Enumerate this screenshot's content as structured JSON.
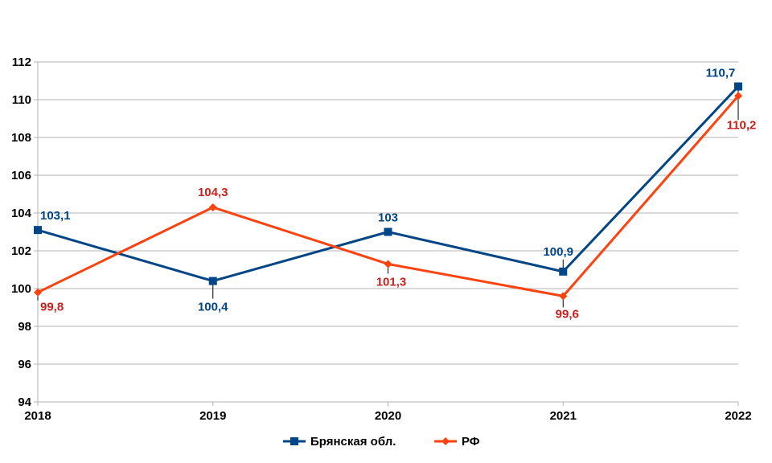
{
  "chart_data": {
    "type": "line",
    "title": "",
    "xlabel": "",
    "ylabel": "",
    "categories": [
      "2018",
      "2019",
      "2020",
      "2021",
      "2022"
    ],
    "ylim": [
      94,
      112
    ],
    "y_ticks": [
      "94",
      "96",
      "98",
      "100",
      "102",
      "104",
      "106",
      "108",
      "110",
      "112"
    ],
    "grid": true,
    "legend_position": "bottom",
    "series": [
      {
        "name": "Брянская обл.",
        "values": [
          103.1,
          100.4,
          103,
          100.9,
          110.7
        ],
        "labels": [
          "103,1",
          "100,4",
          "103",
          "100,9",
          "110,7"
        ],
        "color": "#004586",
        "marker": "square"
      },
      {
        "name": "РФ",
        "values": [
          99.8,
          104.3,
          101.3,
          99.6,
          110.2
        ],
        "labels": [
          "99,8",
          "104,3",
          "101,3",
          "99,6",
          "110,2"
        ],
        "color": "#ff420e",
        "label_color": "#c9211e",
        "marker": "diamond"
      }
    ]
  }
}
